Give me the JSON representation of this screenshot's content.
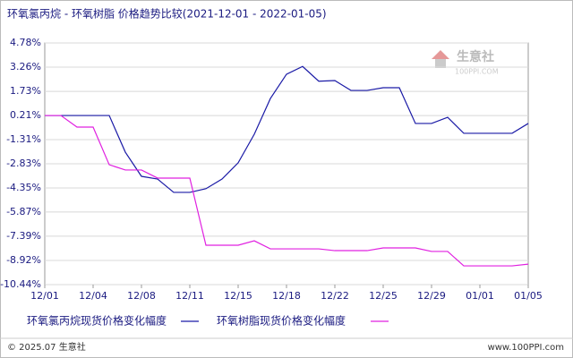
{
  "chart_data": {
    "type": "line",
    "title": "环氧氯丙烷 - 环氧树脂 价格趋势比较(2021-12-01 - 2022-01-05)",
    "categories": [
      "12/01",
      null,
      null,
      "12/04",
      null,
      null,
      "12/08",
      null,
      null,
      "12/11",
      null,
      null,
      "12/15",
      null,
      null,
      "12/18",
      null,
      null,
      "12/22",
      null,
      null,
      "12/25",
      null,
      null,
      "12/29",
      null,
      null,
      "01/01",
      null,
      null,
      "01/05"
    ],
    "series": [
      {
        "name": "环氧氯丙烷现货价格变化幅度",
        "color": "#1a1aa6",
        "values": [
          0.21,
          0.21,
          0.21,
          0.21,
          0.21,
          -2.1,
          -3.62,
          -3.79,
          -4.63,
          -4.63,
          -4.4,
          -3.79,
          -2.77,
          -0.97,
          1.28,
          2.81,
          3.3,
          2.37,
          2.41,
          1.79,
          1.79,
          1.96,
          1.96,
          -0.29,
          -0.29,
          0.1,
          -0.91,
          -0.91,
          -0.91,
          -0.91,
          -0.29
        ]
      },
      {
        "name": "环氧树脂现货价格变化幅度",
        "color": "#e020e0",
        "values": [
          0.21,
          0.21,
          -0.52,
          -0.52,
          -2.89,
          -3.22,
          -3.22,
          -3.73,
          -3.73,
          -3.73,
          -7.96,
          -7.96,
          -7.96,
          -7.68,
          -8.19,
          -8.19,
          -8.19,
          -8.19,
          -8.3,
          -8.3,
          -8.3,
          -8.13,
          -8.13,
          -8.13,
          -8.35,
          -8.35,
          -9.26,
          -9.26,
          -9.26,
          -9.26,
          -9.15
        ]
      }
    ],
    "ylim": [
      -10.44,
      4.78
    ],
    "yticks": [
      {
        "value": -10.44,
        "label": "-10.44%"
      },
      {
        "value": -8.92,
        "label": "-8.92%"
      },
      {
        "value": -7.39,
        "label": "-7.39%"
      },
      {
        "value": -5.87,
        "label": "-5.87%"
      },
      {
        "value": -4.35,
        "label": "-4.35%"
      },
      {
        "value": -2.83,
        "label": "-2.83%"
      },
      {
        "value": -1.31,
        "label": "-1.31%"
      },
      {
        "value": 0.21,
        "label": "0.21%"
      },
      {
        "value": 1.73,
        "label": "1.73%"
      },
      {
        "value": 3.26,
        "label": "3.26%"
      },
      {
        "value": 4.78,
        "label": "4.78%"
      }
    ],
    "grid": true
  },
  "watermark": {
    "name": "生意社",
    "site": "100PPI.COM"
  },
  "footer": {
    "copyright": "© 2025.07 生意社",
    "site": "www.100PPI.com"
  }
}
